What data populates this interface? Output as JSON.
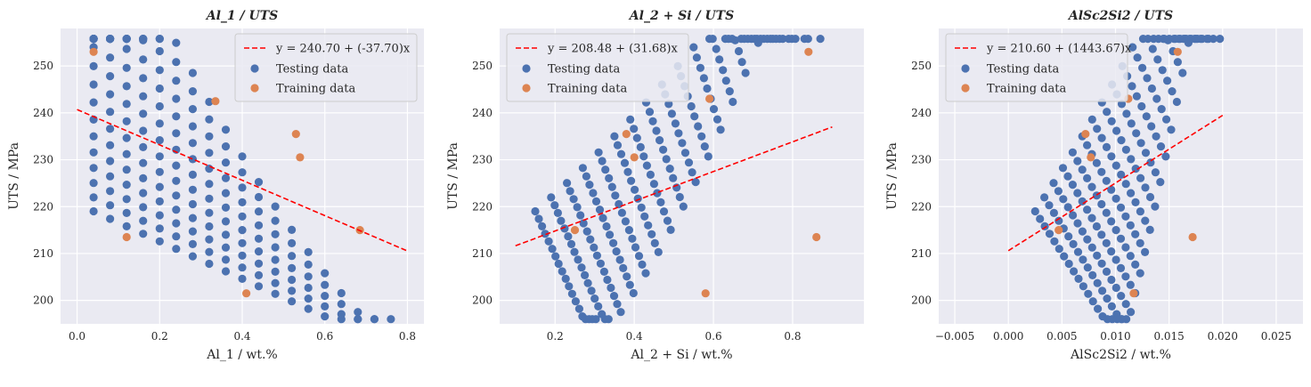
{
  "chart_data": [
    {
      "type": "scatter",
      "title": "Al_1 / UTS",
      "xlabel": "Al_1 / wt.%",
      "ylabel": "UTS / MPa",
      "xlim": [
        -0.04,
        0.84
      ],
      "ylim": [
        195,
        258
      ],
      "xticks": [
        0.0,
        0.2,
        0.4,
        0.6,
        0.8
      ],
      "xtick_labels": [
        "0.0",
        "0.2",
        "0.4",
        "0.6",
        "0.8"
      ],
      "yticks": [
        200,
        210,
        220,
        230,
        240,
        250
      ],
      "ytick_labels": [
        "200",
        "210",
        "220",
        "230",
        "240",
        "250"
      ],
      "grid": true,
      "legend_position": "top-right",
      "fit_line": {
        "label": "y = 240.70 + (-37.70)x",
        "intercept": 240.7,
        "slope": -37.7,
        "x_range": [
          0.0,
          0.8
        ],
        "color": "#ff0000"
      },
      "series": [
        {
          "name": "Testing data",
          "color": "#4c72b0",
          "points": []
        },
        {
          "name": "Training data",
          "color": "#dd8452",
          "points": [
            [
              0.04,
              253
            ],
            [
              0.12,
              213.5
            ],
            [
              0.335,
              242.5
            ],
            [
              0.41,
              201.5
            ],
            [
              0.53,
              235.5
            ],
            [
              0.54,
              230.5
            ],
            [
              0.685,
              215
            ]
          ]
        }
      ]
    },
    {
      "type": "scatter",
      "title": "Al_2 + Si / UTS",
      "xlabel": "Al_2 + Si / wt.%",
      "ylabel": "UTS / MPa",
      "xlim": [
        0.06,
        0.98
      ],
      "ylim": [
        195,
        258
      ],
      "xticks": [
        0.2,
        0.4,
        0.6,
        0.8
      ],
      "xtick_labels": [
        "0.2",
        "0.4",
        "0.6",
        "0.8"
      ],
      "yticks": [
        200,
        210,
        220,
        230,
        240,
        250
      ],
      "ytick_labels": [
        "200",
        "210",
        "220",
        "230",
        "240",
        "250"
      ],
      "grid": true,
      "legend_position": "top-left",
      "fit_line": {
        "label": "y = 208.48 + (31.68)x",
        "intercept": 208.48,
        "slope": 31.68,
        "x_range": [
          0.1,
          0.9
        ],
        "color": "#ff0000"
      },
      "series": [
        {
          "name": "Testing data",
          "color": "#4c72b0",
          "points": []
        },
        {
          "name": "Training data",
          "color": "#dd8452",
          "points": [
            [
              0.25,
              215
            ],
            [
              0.38,
              235.5
            ],
            [
              0.4,
              230.5
            ],
            [
              0.58,
              201.5
            ],
            [
              0.59,
              243
            ],
            [
              0.84,
              253
            ],
            [
              0.86,
              213.5
            ]
          ]
        }
      ]
    },
    {
      "type": "scatter",
      "title": "AlSc2Si2 / UTS",
      "xlabel": "AlSc2Si2 / wt.%",
      "ylabel": "UTS / MPa",
      "xlim": [
        -0.0065,
        0.0275
      ],
      "ylim": [
        195,
        258
      ],
      "xticks": [
        -0.005,
        0.0,
        0.005,
        0.01,
        0.015,
        0.02,
        0.025
      ],
      "xtick_labels": [
        "−0.005",
        "0.000",
        "0.005",
        "0.010",
        "0.015",
        "0.020",
        "0.025"
      ],
      "yticks": [
        200,
        210,
        220,
        230,
        240,
        250
      ],
      "ytick_labels": [
        "200",
        "210",
        "220",
        "230",
        "240",
        "250"
      ],
      "grid": true,
      "legend_position": "top-left",
      "fit_line": {
        "label": "y = 210.60 + (1443.67)x",
        "intercept": 210.6,
        "slope": 1443.67,
        "x_range": [
          0.0,
          0.02
        ],
        "color": "#ff0000"
      },
      "series": [
        {
          "name": "Testing data",
          "color": "#4c72b0",
          "points": []
        },
        {
          "name": "Training data",
          "color": "#dd8452",
          "points": [
            [
              0.0047,
              215
            ],
            [
              0.0072,
              235.5
            ],
            [
              0.0077,
              230.5
            ],
            [
              0.0112,
              243
            ],
            [
              0.0117,
              201.5
            ],
            [
              0.0158,
              253
            ],
            [
              0.0172,
              213.5
            ]
          ]
        }
      ]
    }
  ]
}
